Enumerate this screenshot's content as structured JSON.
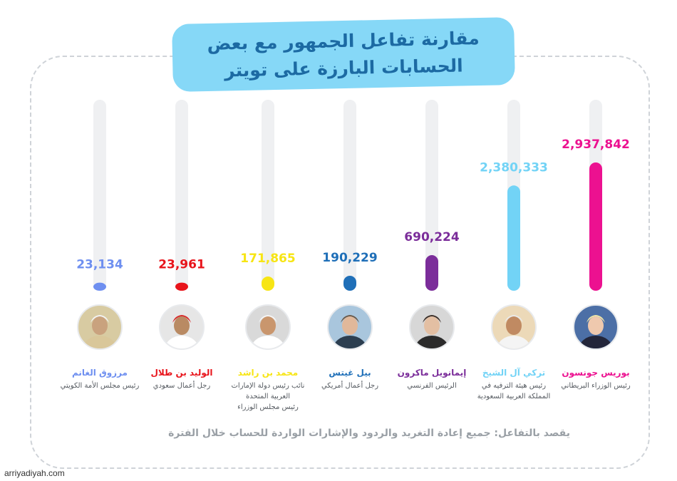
{
  "title": {
    "line1": "مقارنة تفاعل الجمهور مع بعض",
    "line2": "الحسابات البارزة على تويتر"
  },
  "chart_data": {
    "type": "bar",
    "categories": [
      "مرزوق الغانم",
      "الوليد بن طلال",
      "محمد بن راشد",
      "بيل غيتس",
      "إيمانويل ماكرون",
      "تركي آل الشيخ",
      "بوريس جونسون"
    ],
    "values": [
      23134,
      23961,
      171865,
      190229,
      690224,
      2380333,
      2937842
    ],
    "value_labels": [
      "23,134",
      "23,961",
      "171,865",
      "190,229",
      "690,224",
      "2,380,333",
      "2,937,842"
    ],
    "colors": [
      "#6e8ff0",
      "#e8141b",
      "#f7e514",
      "#1f6fb8",
      "#7b2d9a",
      "#72d3f6",
      "#ec1190"
    ],
    "track_color": "#eff0f2",
    "ylim": [
      0,
      3600000
    ]
  },
  "people": [
    {
      "name": "مرزوق الغانم",
      "role": [
        "رئيس مجلس الأمة الكويتي"
      ],
      "icon": "person-icon"
    },
    {
      "name": "الوليد بن طلال",
      "role": [
        "رجل أعمال سعودي"
      ],
      "icon": "person-icon"
    },
    {
      "name": "محمد بن راشد",
      "role": [
        "نائب رئيس دولة الإمارات",
        "العربية المتحدة",
        "رئيس مجلس الوزراء"
      ],
      "icon": "person-icon"
    },
    {
      "name": "بيل غيتس",
      "role": [
        "رجل أعمال أمريكي"
      ],
      "icon": "person-icon"
    },
    {
      "name": "إيمانويل ماكرون",
      "role": [
        "الرئيس الفرنسي"
      ],
      "icon": "person-icon"
    },
    {
      "name": "تركي آل الشيخ",
      "role": [
        "رئيس هيئة الترفيه في",
        "المملكة العربية السعودية"
      ],
      "icon": "person-icon"
    },
    {
      "name": "بوريس جونسون",
      "role": [
        "رئيس الوزراء البريطاني"
      ],
      "icon": "person-icon"
    }
  ],
  "footnote": "يقصد بالتفاعل: جميع إعادة التغريد والردود والإشارات الواردة للحساب خلال الفترة",
  "source": "arriyadiyah.com"
}
